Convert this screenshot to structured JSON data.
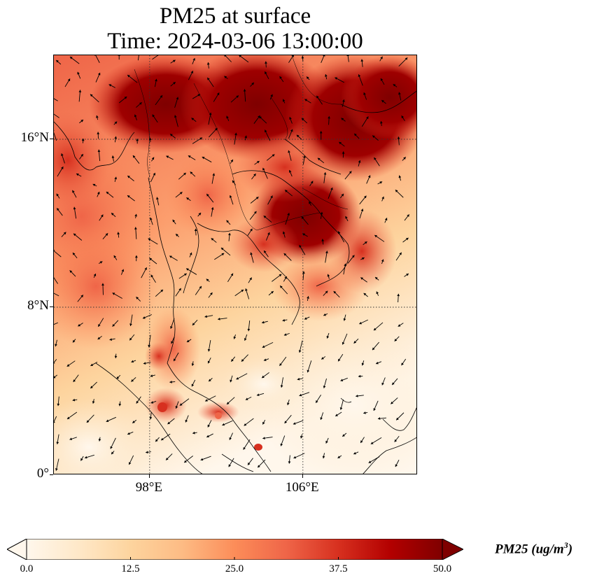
{
  "title": {
    "line1": "PM25 at surface",
    "line2": "Time: 2024-03-06 13:00:00"
  },
  "map": {
    "variable": "PM25",
    "lat_range": [
      0,
      20
    ],
    "lon_range": [
      93,
      112
    ],
    "lat_ticks": [
      {
        "value": 16,
        "label": "16°N"
      },
      {
        "value": 8,
        "label": "8°N"
      },
      {
        "value": 0,
        "label": "0°"
      }
    ],
    "lon_ticks": [
      {
        "value": 98,
        "label": "98°E"
      },
      {
        "value": 106,
        "label": "106°E"
      }
    ],
    "gridlines": "dotted",
    "vectors": "wind-arrows",
    "colormap": "OrRd"
  },
  "colorbar": {
    "title_main": "PM25 (ug/m",
    "title_sup": "3",
    "title_close": ")",
    "min": 0.0,
    "max": 50.0,
    "extend": "both",
    "ticks": [
      "0.0",
      "12.5",
      "25.0",
      "37.5",
      "50.0"
    ],
    "colors": [
      "#fff7ec",
      "#fee8c8",
      "#fdd49e",
      "#fdbb84",
      "#fc8d59",
      "#ef6548",
      "#d7301f",
      "#b30000",
      "#7f0000"
    ]
  }
}
